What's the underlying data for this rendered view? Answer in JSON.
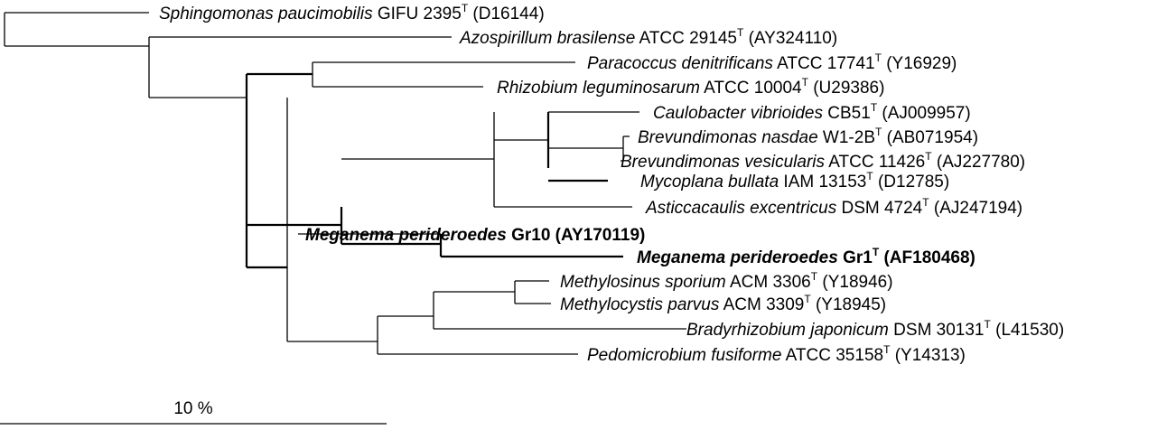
{
  "taxa": [
    {
      "genus": "Sphingomonas paucimobilis",
      "strain": " GIFU 2395",
      "type_strain": true,
      "accession": " (D16144)",
      "bold": false
    },
    {
      "genus": "Azospirillum brasilense",
      "strain": " ATCC 29145",
      "type_strain": true,
      "accession": " (AY324110)",
      "bold": false
    },
    {
      "genus": "Paracoccus denitrificans",
      "strain": " ATCC 17741",
      "type_strain": true,
      "accession": " (Y16929)",
      "bold": false
    },
    {
      "genus": "Rhizobium leguminosarum",
      "strain": " ATCC 10004",
      "type_strain": true,
      "accession": " (U29386)",
      "bold": false
    },
    {
      "genus": "Caulobacter vibrioides",
      "strain": " CB51",
      "type_strain": true,
      "accession": " (AJ009957)",
      "bold": false
    },
    {
      "genus": "Brevundimonas nasdae",
      "strain": " W1-2B",
      "type_strain": true,
      "accession": " (AB071954)",
      "bold": false
    },
    {
      "genus": "Brevundimonas vesicularis",
      "strain": " ATCC 11426",
      "type_strain": true,
      "accession": " (AJ227780)",
      "bold": false
    },
    {
      "genus": "Mycoplana bullata",
      "strain": " IAM 13153",
      "type_strain": true,
      "accession": " (D12785)",
      "bold": false
    },
    {
      "genus": "Asticcacaulis excentricus",
      "strain": " DSM 4724",
      "type_strain": true,
      "accession": " (AJ247194)",
      "bold": false
    },
    {
      "genus": "Meganema perideroedes",
      "strain": " Gr10",
      "type_strain": false,
      "accession": " (AY170119)",
      "bold": true
    },
    {
      "genus": "Meganema perideroedes",
      "strain": " Gr1",
      "type_strain": true,
      "accession": " (AF180468)",
      "bold": true
    },
    {
      "genus": "Methylosinus sporium",
      "strain": " ACM 3306",
      "type_strain": true,
      "accession": " (Y18946)",
      "bold": false
    },
    {
      "genus": "Methylocystis parvus",
      "strain": " ACM 3309",
      "type_strain": true,
      "accession": " (Y18945)",
      "bold": false
    },
    {
      "genus": "Bradyrhizobium japonicum",
      "strain": " DSM 30131",
      "type_strain": true,
      "accession": " (L41530)",
      "bold": false
    },
    {
      "genus": "Pedomicrobium fusiforme",
      "strain": " ATCC 35158",
      "type_strain": true,
      "accession": " (Y14313)",
      "bold": false
    }
  ],
  "type_strain_marker": "T",
  "scale_bar": {
    "label": "10 %"
  }
}
